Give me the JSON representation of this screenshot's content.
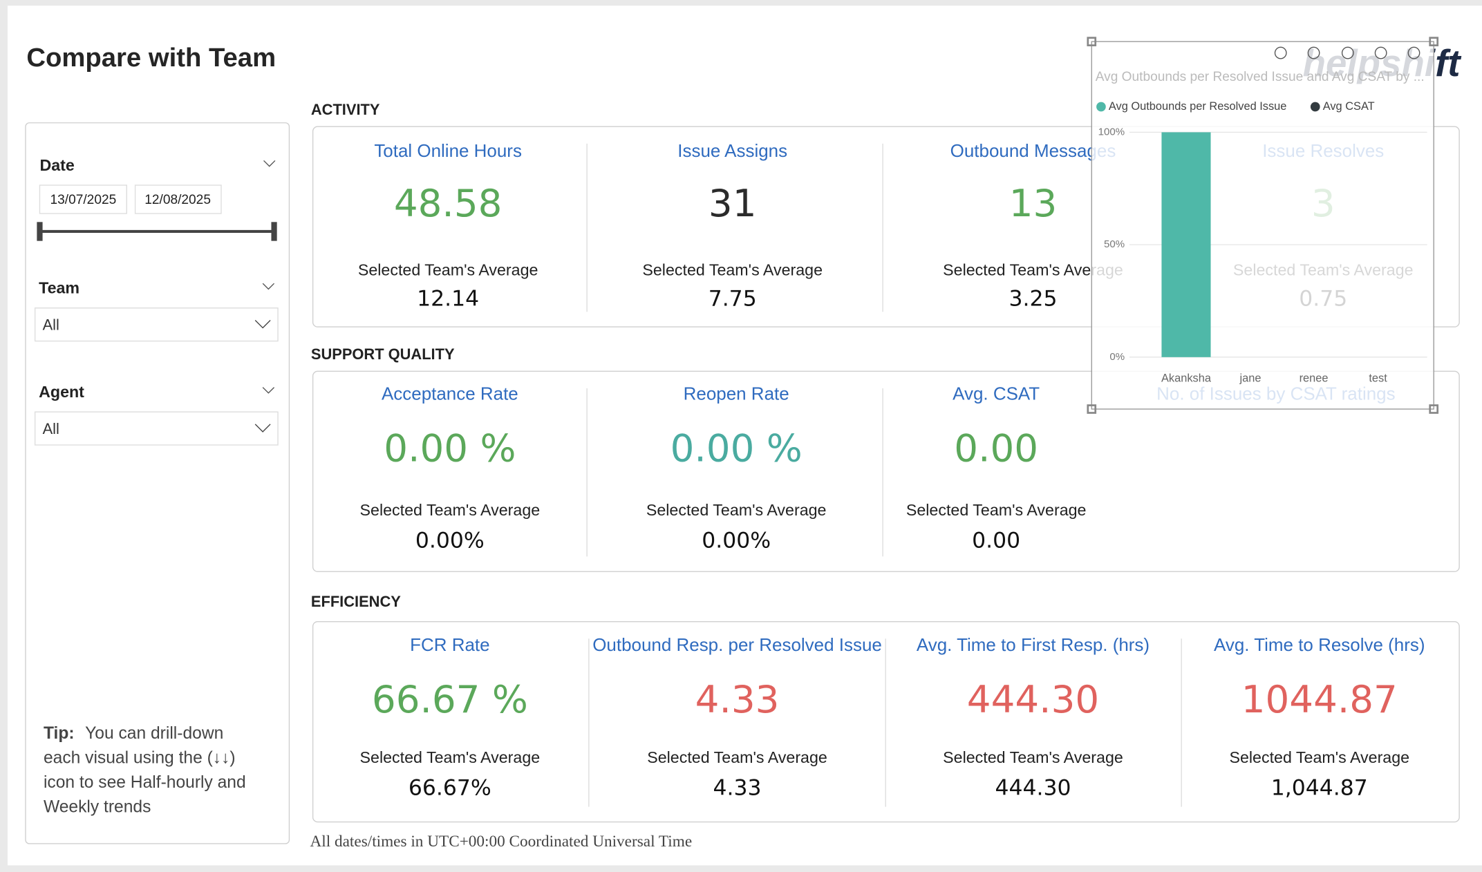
{
  "header": {
    "title": "Compare with Team",
    "logo": "helpshift"
  },
  "filters": {
    "date": {
      "label": "Date",
      "start": "13/07/2025",
      "end": "12/08/2025"
    },
    "team": {
      "label": "Team",
      "value": "All"
    },
    "agent": {
      "label": "Agent",
      "value": "All"
    }
  },
  "tip": {
    "label": "Tip:",
    "lines": [
      "You can drill-down",
      "each visual using the (↓↓)",
      "icon to see Half-hourly and",
      "Weekly trends"
    ]
  },
  "sections": [
    {
      "title": "ACTIVITY",
      "cards": [
        {
          "title": "Total Online Hours",
          "value": "48.58",
          "color": "#5ba85a",
          "avg_label": "Selected Team's Average",
          "avg": "12.14"
        },
        {
          "title": "Issue Assigns",
          "value": "31",
          "color": "#2b2b2b",
          "avg_label": "Selected Team's Average",
          "avg": "7.75"
        },
        {
          "title": "Outbound Messages",
          "value": "13",
          "color": "#5ba85a",
          "avg_label": "Selected Team's Average",
          "avg": "3.25"
        },
        {
          "title": "Issue Resolves",
          "value": "3",
          "color": "#5ba85a",
          "avg_label": "Selected Team's Average",
          "avg": "0.75"
        }
      ]
    },
    {
      "title": "SUPPORT QUALITY",
      "cards": [
        {
          "title": "Acceptance Rate",
          "value": "0.00 %",
          "color": "#5ba85a",
          "avg_label": "Selected Team's Average",
          "avg": "0.00%"
        },
        {
          "title": "Reopen Rate",
          "value": "0.00 %",
          "color": "#4aaba0",
          "avg_label": "Selected Team's Average",
          "avg": "0.00%"
        },
        {
          "title": "Avg. CSAT",
          "value": "0.00",
          "color": "#5ba85a",
          "avg_label": "Selected Team's Average",
          "avg": "0.00"
        },
        {
          "title": "No. of Issues by CSAT ratings"
        }
      ]
    },
    {
      "title": "EFFICIENCY",
      "cards": [
        {
          "title": "FCR Rate",
          "value": "66.67 %",
          "color": "#5ba85a",
          "avg_label": "Selected Team's Average",
          "avg": "66.67%"
        },
        {
          "title": "Outbound Resp. per Resolved Issue",
          "value": "4.33",
          "color": "#e0625e",
          "avg_label": "Selected Team's Average",
          "avg": "4.33"
        },
        {
          "title": "Avg. Time to First Resp. (hrs)",
          "value": "444.30",
          "color": "#e0625e",
          "avg_label": "Selected Team's Average",
          "avg": "444.30"
        },
        {
          "title": "Avg. Time to Resolve (hrs)",
          "value": "1044.87",
          "color": "#e0625e",
          "avg_label": "Selected Team's Average",
          "avg": "1,044.87"
        }
      ]
    }
  ],
  "footer": "All dates/times in UTC+00:00 Coordinated Universal Time",
  "chart_data": {
    "type": "bar",
    "title": "Avg Outbounds per Resolved Issue and Avg CSAT by ...",
    "categories": [
      "Akanksha",
      "jane",
      "renee",
      "test"
    ],
    "series": [
      {
        "name": "Avg Outbounds per Resolved Issue",
        "color": "#4fb8a8",
        "values": [
          100,
          0,
          0,
          0
        ]
      },
      {
        "name": "Avg CSAT",
        "color": "#333b40",
        "values": [
          0,
          0,
          0,
          0
        ]
      }
    ],
    "ylim": [
      0,
      100
    ],
    "yticks": [
      {
        "value": 0,
        "label": "0%"
      },
      {
        "value": 50,
        "label": "50%"
      },
      {
        "value": 100,
        "label": "100%"
      }
    ],
    "grid": true
  }
}
